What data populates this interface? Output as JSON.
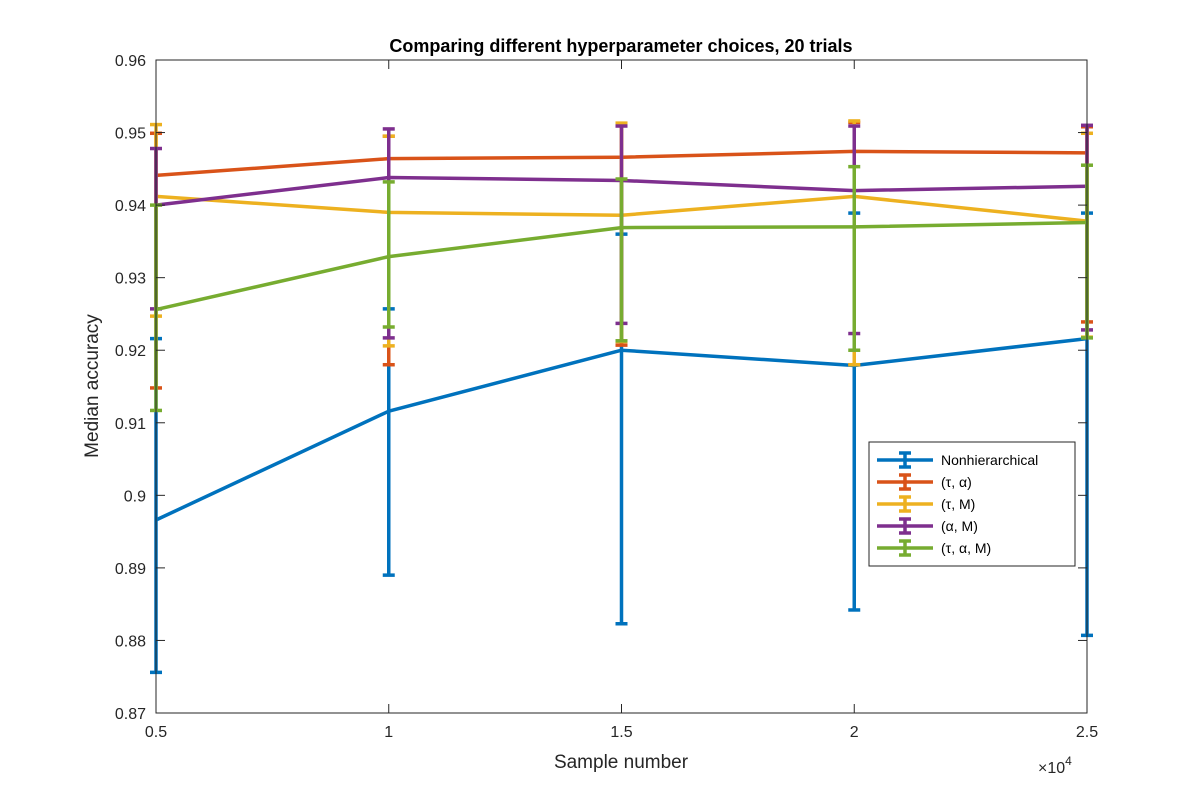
{
  "chart_data": {
    "type": "line",
    "title": "Comparing different hyperparameter choices, 20 trials",
    "xlabel": "Sample number",
    "ylabel": "Median accuracy",
    "x_multiplier_label": "×10",
    "x_multiplier_exp": "4",
    "xlim": [
      5000,
      25000
    ],
    "ylim": [
      0.87,
      0.96
    ],
    "x": [
      5000,
      10000,
      15000,
      20000,
      25000
    ],
    "x_ticks": [
      5000,
      10000,
      15000,
      20000,
      25000
    ],
    "x_tick_labels": [
      "0.5",
      "1",
      "1.5",
      "2",
      "2.5"
    ],
    "y_ticks": [
      0.87,
      0.88,
      0.89,
      0.9,
      0.91,
      0.92,
      0.93,
      0.94,
      0.95,
      0.96
    ],
    "y_tick_labels": [
      "0.87",
      "0.88",
      "0.89",
      "0.9",
      "0.91",
      "0.92",
      "0.93",
      "0.94",
      "0.95",
      "0.96"
    ],
    "grid": false,
    "legend_position": "center-right",
    "series": [
      {
        "name": "Nonhierarchical",
        "color": "#0072BD",
        "values": [
          0.8966,
          0.9116,
          0.92,
          0.9179,
          0.9216
        ],
        "err_low": [
          0.8756,
          0.889,
          0.8823,
          0.8842,
          0.8807
        ],
        "err_high": [
          0.9216,
          0.9257,
          0.936,
          0.9389,
          0.9389
        ]
      },
      {
        "name": "(τ, α)",
        "color": "#D95319",
        "values": [
          0.9441,
          0.9464,
          0.9466,
          0.9474,
          0.9472
        ],
        "err_low": [
          0.9148,
          0.918,
          0.9207,
          0.918,
          0.9239
        ],
        "err_high": [
          0.9499,
          0.9495,
          0.9511,
          0.9514,
          0.9508
        ]
      },
      {
        "name": "(τ, M)",
        "color": "#EDB120",
        "values": [
          0.9412,
          0.939,
          0.9386,
          0.9412,
          0.9378
        ],
        "err_low": [
          0.9247,
          0.9206,
          0.9212,
          0.918,
          0.9218
        ],
        "err_high": [
          0.9511,
          0.9495,
          0.9513,
          0.9516,
          0.9499
        ]
      },
      {
        "name": "(α, M)",
        "color": "#7E2F8E",
        "values": [
          0.94,
          0.9438,
          0.9434,
          0.942,
          0.9426
        ],
        "err_low": [
          0.9257,
          0.9217,
          0.9237,
          0.9223,
          0.9228
        ],
        "err_high": [
          0.9478,
          0.9505,
          0.9509,
          0.9509,
          0.951
        ]
      },
      {
        "name": "(τ, α, M)",
        "color": "#77AC30",
        "values": [
          0.9256,
          0.9329,
          0.9369,
          0.937,
          0.9376
        ],
        "err_low": [
          0.9117,
          0.9232,
          0.9213,
          0.92,
          0.9217
        ],
        "err_high": [
          0.94,
          0.9432,
          0.9436,
          0.9453,
          0.9455
        ]
      }
    ]
  }
}
